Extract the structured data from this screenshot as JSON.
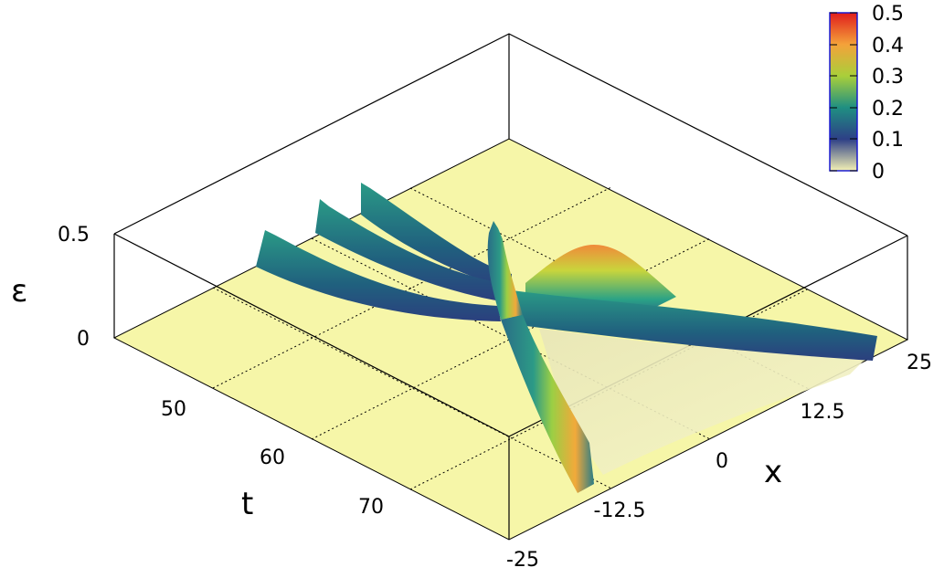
{
  "chart_data": {
    "type": "surface3d",
    "axes": {
      "x": {
        "label": "x",
        "ticks": [
          "-25",
          "-12.5",
          "0",
          "12.5",
          "25"
        ],
        "range": [
          -25,
          25
        ]
      },
      "t": {
        "label": "t",
        "ticks": [
          "50",
          "60",
          "70"
        ],
        "range": [
          45,
          78
        ]
      },
      "z": {
        "label": "ε",
        "ticks": [
          "0",
          "0.5"
        ],
        "range": [
          0,
          0.5
        ]
      }
    },
    "colorbar": {
      "ticks": [
        "0",
        "0.1",
        "0.2",
        "0.3",
        "0.4",
        "0.5"
      ],
      "range": [
        0,
        0.5
      ],
      "colors": [
        "#f4f1b4",
        "#2d3f86",
        "#1f8f82",
        "#a9cf3a",
        "#f4a23a",
        "#e01c1c"
      ]
    },
    "grid": true,
    "base_fill": "#f6f6a8"
  }
}
